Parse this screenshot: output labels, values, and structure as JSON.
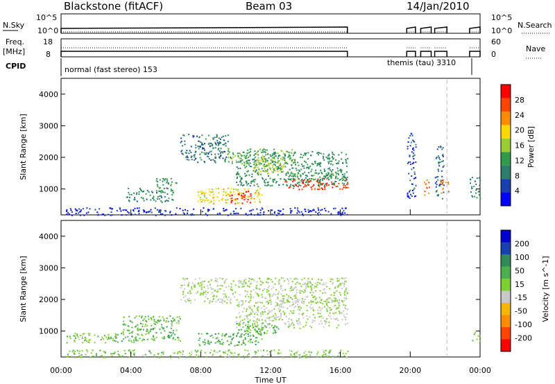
{
  "header": {
    "station": "Blackstone (fitACF)",
    "beam": "Beam 03",
    "date": "14/Jan/2010"
  },
  "panels": {
    "nsky": {
      "label": "N.Sky",
      "left_ticks": [
        "10^5",
        "10^0"
      ],
      "right_ticks": [
        "10^5",
        "10^0"
      ],
      "right_label": "N.Search"
    },
    "freq": {
      "label_line1": "Freq.",
      "label_line2": "[MHz]",
      "left_ticks": [
        "18",
        "8"
      ],
      "right_ticks": [
        "60",
        "0"
      ],
      "right_label": "Nave"
    },
    "cpid": {
      "label": "CPID",
      "mode1": "normal (fast stereo) 153",
      "mode2": "themis (tau) 3310"
    }
  },
  "colors": {
    "power": [
      "#0000ff",
      "#1a3fb0",
      "#2e7d6b",
      "#2e9a4a",
      "#9acd32",
      "#ffd700",
      "#ff8c00",
      "#ff4500",
      "#ff0000"
    ],
    "velocity": [
      "#0000cc",
      "#1a3fb0",
      "#2e8b57",
      "#4caf50",
      "#7cd032",
      "#c8c8c8",
      "#f5b700",
      "#ff8c00",
      "#ff4500",
      "#ff0000"
    ]
  },
  "chart_data": [
    {
      "type": "heatmap",
      "title": "Power",
      "ylabel": "Slant Range [km]",
      "ylim": [
        180,
        4500
      ],
      "yticks": [
        "1000",
        "2000",
        "3000",
        "4000"
      ],
      "colorbar_label": "Power [dB]",
      "colorbar_ticks": [
        "4",
        "8",
        "12",
        "16",
        "20",
        "24",
        "28"
      ],
      "clim": [
        0,
        30
      ],
      "grid": false,
      "regions": [
        {
          "t": [
            6.8,
            9.6
          ],
          "r": [
            1850,
            2750
          ],
          "v": 8
        },
        {
          "t": [
            9.5,
            13.5
          ],
          "r": [
            1800,
            2300
          ],
          "v": 13
        },
        {
          "t": [
            10.0,
            16.4
          ],
          "r": [
            1100,
            2200
          ],
          "v": 10
        },
        {
          "t": [
            11.0,
            12.8
          ],
          "r": [
            1500,
            2000
          ],
          "v": 16
        },
        {
          "t": [
            12.8,
            16.4
          ],
          "r": [
            1000,
            1350
          ],
          "v": 26
        },
        {
          "t": [
            12.8,
            16.4
          ],
          "r": [
            1300,
            1550
          ],
          "v": 12
        },
        {
          "t": [
            3.7,
            6.5
          ],
          "r": [
            600,
            1050
          ],
          "v": 9
        },
        {
          "t": [
            5.4,
            6.6
          ],
          "r": [
            900,
            1350
          ],
          "v": 11
        },
        {
          "t": [
            7.8,
            11.5
          ],
          "r": [
            550,
            1050
          ],
          "v": 18
        },
        {
          "t": [
            9.6,
            10.9
          ],
          "r": [
            550,
            950
          ],
          "v": 27
        },
        {
          "t": [
            0.2,
            16.4
          ],
          "r": [
            180,
            420
          ],
          "v": 4
        },
        {
          "t": [
            19.8,
            20.3
          ],
          "r": [
            700,
            2800
          ],
          "v": 5
        },
        {
          "t": [
            20.7,
            21.1
          ],
          "r": [
            800,
            1300
          ],
          "v": 24
        },
        {
          "t": [
            21.4,
            21.9
          ],
          "r": [
            700,
            2400
          ],
          "v": 7
        },
        {
          "t": [
            21.7,
            22.2
          ],
          "r": [
            850,
            1350
          ],
          "v": 23
        },
        {
          "t": [
            23.4,
            24.0
          ],
          "r": [
            700,
            1400
          ],
          "v": 9
        }
      ]
    },
    {
      "type": "heatmap",
      "title": "Velocity",
      "ylabel": "Slant Range [km]",
      "xlabel": "Time UT",
      "xticks": [
        "00:00",
        "04:00",
        "08:00",
        "12:00",
        "16:00",
        "20:00",
        "00:00"
      ],
      "xlim": [
        0,
        24
      ],
      "ylim": [
        180,
        4500
      ],
      "yticks": [
        "1000",
        "2000",
        "3000",
        "4000"
      ],
      "colorbar_label": "Velocity [m s^-1]",
      "colorbar_ticks": [
        "200",
        "100",
        "50",
        "15",
        "-15",
        "-50",
        "-100",
        "-200"
      ],
      "clim": [
        -250,
        250
      ],
      "grid": false,
      "regions": [
        {
          "t": [
            6.8,
            16.4
          ],
          "r": [
            1900,
            2700
          ],
          "v": 0
        },
        {
          "t": [
            10.0,
            16.4
          ],
          "r": [
            1100,
            2000
          ],
          "v": 0
        },
        {
          "t": [
            0.3,
            4.5
          ],
          "r": [
            650,
            950
          ],
          "v": -40
        },
        {
          "t": [
            3.5,
            6.8
          ],
          "r": [
            700,
            1500
          ],
          "v": -60
        },
        {
          "t": [
            7.8,
            11.5
          ],
          "r": [
            550,
            950
          ],
          "v": -80
        },
        {
          "t": [
            10.0,
            12.5
          ],
          "r": [
            850,
            1300
          ],
          "v": -70
        },
        {
          "t": [
            0.2,
            16.4
          ],
          "r": [
            180,
            420
          ],
          "v": -30
        },
        {
          "t": [
            23.5,
            24.0
          ],
          "r": [
            700,
            1000
          ],
          "v": -40
        }
      ]
    }
  ],
  "nsky_series": {
    "time": [
      0,
      1,
      2,
      3,
      4,
      5,
      6,
      7,
      8,
      9,
      10,
      11,
      12,
      13,
      14,
      15,
      16.4,
      19.8,
      20.3,
      20.6,
      21.2,
      21.4,
      22.1,
      23.4,
      24
    ],
    "nsky_frac": [
      0.4,
      0.42,
      0.4,
      0.43,
      0.41,
      0.42,
      0.45,
      0.44,
      0.46,
      0.45,
      0.47,
      0.46,
      0.48,
      0.5,
      0.52,
      0.53,
      0.52,
      0.35,
      0.4,
      0.55,
      0.5,
      0.6,
      0.6,
      0.6,
      0.6
    ]
  },
  "segments": [
    [
      0,
      16.4
    ],
    [
      19.8,
      20.3
    ],
    [
      20.6,
      21.2
    ],
    [
      21.4,
      22.1
    ],
    [
      23.4,
      24.0
    ]
  ]
}
